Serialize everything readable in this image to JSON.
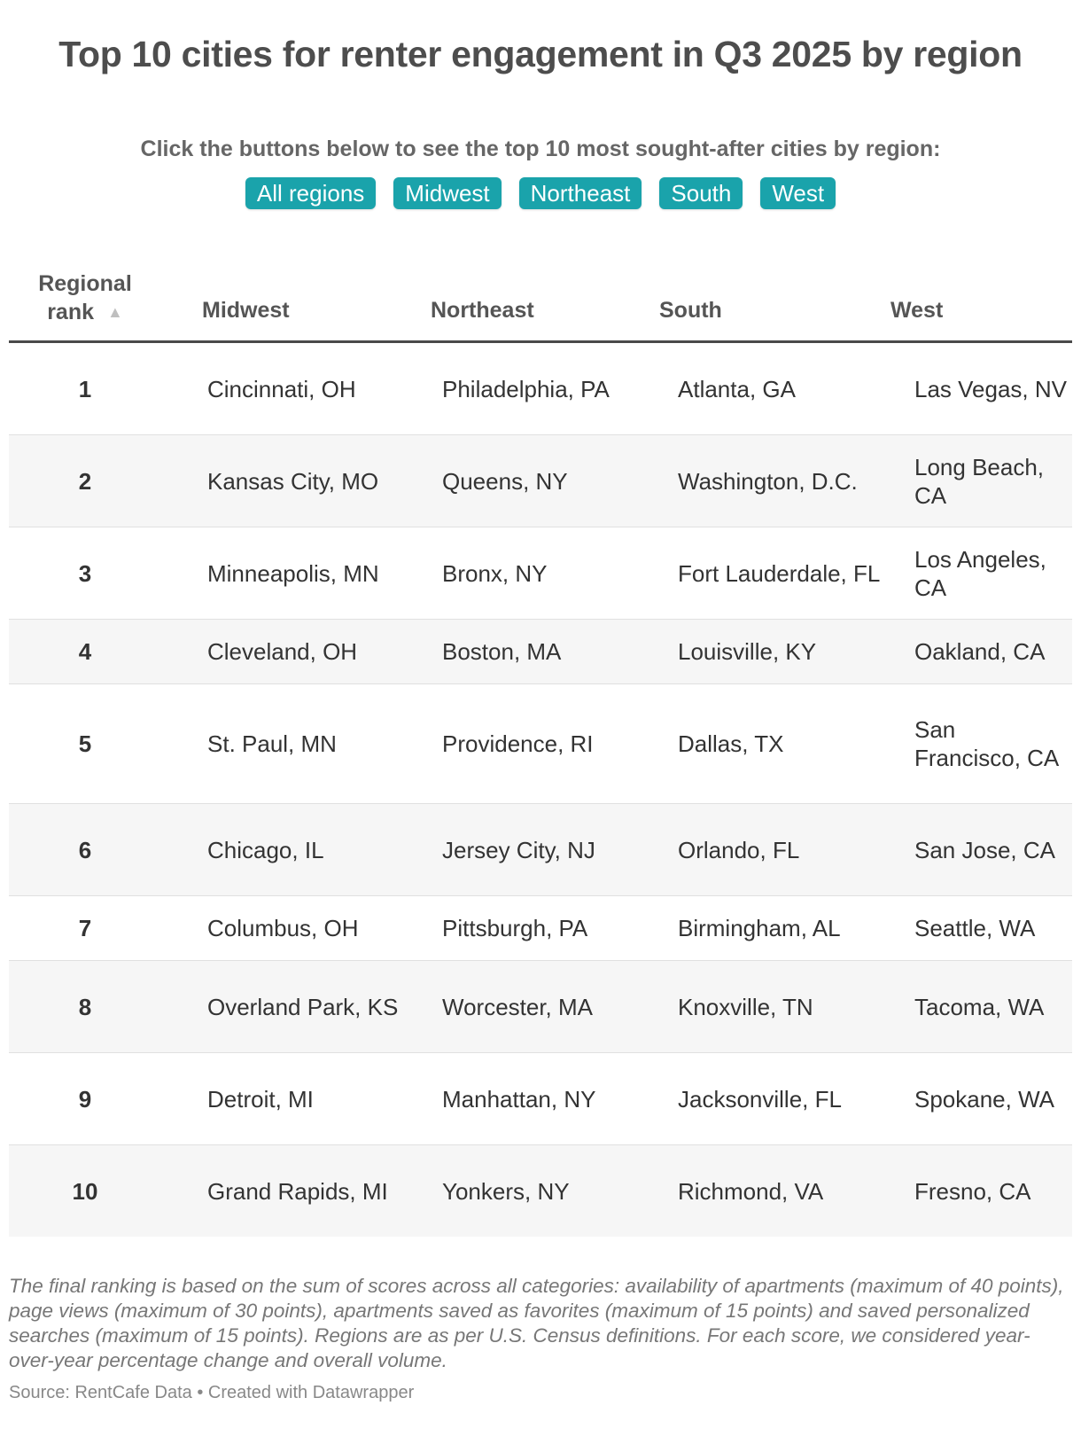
{
  "title": "Top 10 cities for renter engagement in Q3 2025 by region",
  "subtitle": "Click the buttons below to see the top 10 most sought-after cities by region:",
  "buttons": [
    "All regions",
    "Midwest",
    "Northeast",
    "South",
    "West"
  ],
  "colors": {
    "button_bg": "#1aa3ab",
    "button_text": "#ffffff",
    "row_alt": "#f6f6f6"
  },
  "chart_data": {
    "type": "table",
    "columns": [
      "Regional rank",
      "Midwest",
      "Northeast",
      "South",
      "West"
    ],
    "sorted_by": "Regional rank",
    "sort_direction": "ascending",
    "rows": [
      [
        "1",
        "Cincinnati, OH",
        "Philadelphia, PA",
        "Atlanta, GA",
        "Las Vegas, NV"
      ],
      [
        "2",
        "Kansas City, MO",
        "Queens, NY",
        "Washington, D.C.",
        "Long Beach, CA"
      ],
      [
        "3",
        "Minneapolis, MN",
        "Bronx, NY",
        "Fort Lauderdale, FL",
        "Los Angeles, CA"
      ],
      [
        "4",
        "Cleveland, OH",
        "Boston, MA",
        "Louisville, KY",
        "Oakland, CA"
      ],
      [
        "5",
        "St. Paul, MN",
        "Providence, RI",
        "Dallas, TX",
        "San Francisco, CA"
      ],
      [
        "6",
        "Chicago, IL",
        "Jersey City, NJ",
        "Orlando, FL",
        "San Jose, CA"
      ],
      [
        "7",
        "Columbus, OH",
        "Pittsburgh, PA",
        "Birmingham, AL",
        "Seattle, WA"
      ],
      [
        "8",
        "Overland Park, KS",
        "Worcester, MA",
        "Knoxville, TN",
        "Tacoma, WA"
      ],
      [
        "9",
        "Detroit, MI",
        "Manhattan, NY",
        "Jacksonville, FL",
        "Spokane, WA"
      ],
      [
        "10",
        "Grand Rapids, MI",
        "Yonkers, NY",
        "Richmond, VA",
        "Fresno, CA"
      ]
    ]
  },
  "notes": "The final ranking is based on the sum of scores across all categories: availability of apartments (maximum of 40 points), page views (maximum of 30 points), apartments saved as favorites (maximum of 15 points) and saved personalized searches (maximum of 15 points). Regions are as per U.S. Census definitions. For each score, we considered year-over-year percentage change and overall volume.",
  "source": "Source: RentCafe Data • Created with Datawrapper"
}
